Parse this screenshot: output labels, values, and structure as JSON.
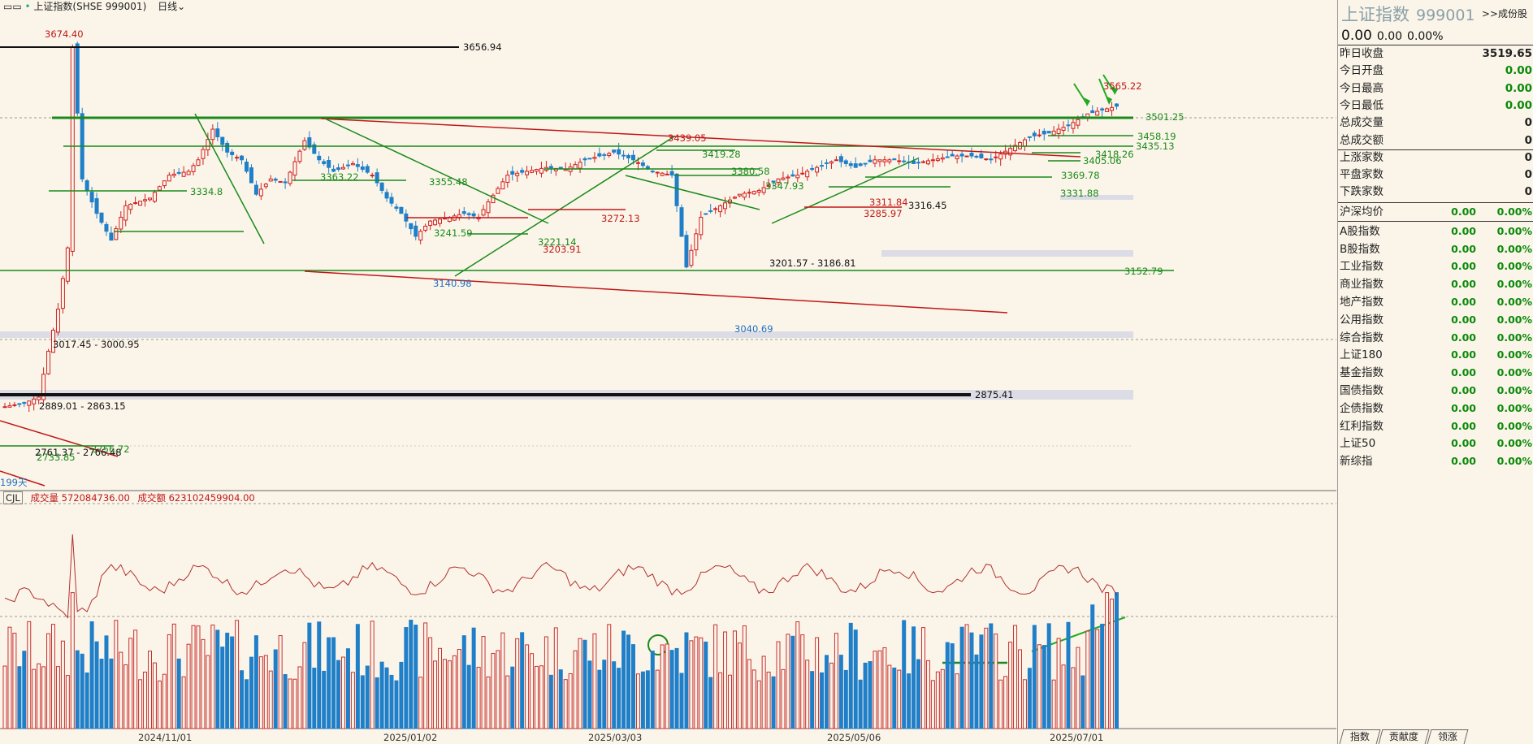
{
  "header": {
    "icon": "window-icon",
    "title": "上证指数(SHSE 999001)",
    "period": "日线"
  },
  "main_chart": {
    "price_labels": [
      {
        "text": "3674.40",
        "color": "#c01818"
      },
      {
        "text": "3656.94",
        "color": "#111111"
      },
      {
        "text": "3565.22",
        "color": "#c01818"
      },
      {
        "text": "3501.25",
        "color": "#1a8a1a"
      },
      {
        "text": "3458.19",
        "color": "#1a8a1a"
      },
      {
        "text": "3435.13",
        "color": "#1a8a1a"
      },
      {
        "text": "3439.05",
        "color": "#c01818"
      },
      {
        "text": "3419.28",
        "color": "#1a8a1a"
      },
      {
        "text": "3418.26",
        "color": "#1a8a1a"
      },
      {
        "text": "3405.06",
        "color": "#1a8a1a"
      },
      {
        "text": "3380.58",
        "color": "#1a8a1a"
      },
      {
        "text": "3369.78",
        "color": "#1a8a1a"
      },
      {
        "text": "3355.48",
        "color": "#1a8a1a"
      },
      {
        "text": "3347.93",
        "color": "#1a8a1a"
      },
      {
        "text": "3334.8",
        "color": "#1a8a1a"
      },
      {
        "text": "3363.22",
        "color": "#1a8a1a"
      },
      {
        "text": "3331.88",
        "color": "#1a8a1a"
      },
      {
        "text": "3316.45",
        "color": "#111111"
      },
      {
        "text": "3311.84",
        "color": "#c01818"
      },
      {
        "text": "3285.97",
        "color": "#c01818"
      },
      {
        "text": "3272.13",
        "color": "#c01818"
      },
      {
        "text": "3241.59",
        "color": "#1a8a1a"
      },
      {
        "text": "3221.14",
        "color": "#1a8a1a"
      },
      {
        "text": "3203.91",
        "color": "#c01818"
      },
      {
        "text": "3201.57 - 3186.81",
        "color": "#111111"
      },
      {
        "text": "3152.79",
        "color": "#1a8a1a"
      },
      {
        "text": "3140.98",
        "color": "#1f6fc0"
      },
      {
        "text": "3040.69",
        "color": "#1f6fc0"
      },
      {
        "text": "3017.45 - 3000.95",
        "color": "#111111"
      },
      {
        "text": "2889.01 - 2863.15",
        "color": "#111111"
      },
      {
        "text": "2875.41",
        "color": "#111111"
      },
      {
        "text": "2761.37 - 2766.48",
        "color": "#111111"
      },
      {
        "text": "2756.72",
        "color": "#1a8a1a"
      },
      {
        "text": "2733.85",
        "color": "#1a8a1a"
      },
      {
        "text": "199天",
        "color": "#1f6fc0"
      }
    ]
  },
  "volume_panel": {
    "indicator": "CJL",
    "volume_label": "成交量",
    "volume_value": "572084736.00",
    "amount_label": "成交额",
    "amount_value": "623102459904.00"
  },
  "x_axis": {
    "dates": [
      "2024/11/01",
      "2025/01/02",
      "2025/03/03",
      "2025/05/06",
      "2025/07/01"
    ]
  },
  "sidebar": {
    "name": "上证指数",
    "code": "999001",
    "link": ">>成份股",
    "price": "0.00",
    "change": "0.00",
    "change_pct": "0.00%",
    "quote_rows": [
      {
        "label": "昨日收盘",
        "value": "3519.65",
        "green": false
      },
      {
        "label": "今日开盘",
        "value": "0.00",
        "green": true
      },
      {
        "label": "今日最高",
        "value": "0.00",
        "green": true
      },
      {
        "label": "今日最低",
        "value": "0.00",
        "green": true
      },
      {
        "label": "总成交量",
        "value": "0",
        "green": false
      },
      {
        "label": "总成交额",
        "value": "0",
        "green": false
      },
      {
        "label": "上涨家数",
        "value": "0",
        "green": false
      },
      {
        "label": "平盘家数",
        "value": "0",
        "green": false
      },
      {
        "label": "下跌家数",
        "value": "0",
        "green": false
      }
    ],
    "avg_row": {
      "label": "沪深均价",
      "v1": "0.00",
      "v2": "0.00%"
    },
    "index_rows": [
      {
        "label": "A股指数",
        "v1": "0.00",
        "v2": "0.00%"
      },
      {
        "label": "B股指数",
        "v1": "0.00",
        "v2": "0.00%"
      },
      {
        "label": "工业指数",
        "v1": "0.00",
        "v2": "0.00%"
      },
      {
        "label": "商业指数",
        "v1": "0.00",
        "v2": "0.00%"
      },
      {
        "label": "地产指数",
        "v1": "0.00",
        "v2": "0.00%"
      },
      {
        "label": "公用指数",
        "v1": "0.00",
        "v2": "0.00%"
      },
      {
        "label": "综合指数",
        "v1": "0.00",
        "v2": "0.00%"
      },
      {
        "label": "上证180",
        "v1": "0.00",
        "v2": "0.00%"
      },
      {
        "label": "基金指数",
        "v1": "0.00",
        "v2": "0.00%"
      },
      {
        "label": "国债指数",
        "v1": "0.00",
        "v2": "0.00%"
      },
      {
        "label": "企债指数",
        "v1": "0.00",
        "v2": "0.00%"
      },
      {
        "label": "红利指数",
        "v1": "0.00",
        "v2": "0.00%"
      },
      {
        "label": "上证50",
        "v1": "0.00",
        "v2": "0.00%"
      },
      {
        "label": "新综指",
        "v1": "0.00",
        "v2": "0.00%"
      }
    ],
    "tabs": [
      "指数",
      "贡献度",
      "领涨"
    ]
  }
}
